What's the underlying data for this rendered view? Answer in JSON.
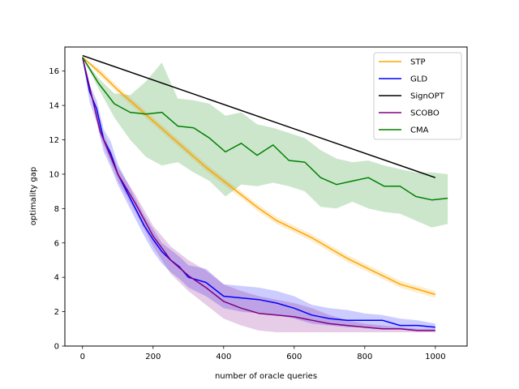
{
  "chart_data": {
    "type": "line",
    "title": "",
    "xlabel": "number of oracle queries",
    "ylabel": "optimality gap",
    "xlim": [
      -50,
      1090
    ],
    "ylim": [
      0,
      17.4
    ],
    "xticks": [
      0,
      200,
      400,
      600,
      800,
      1000
    ],
    "yticks": [
      0,
      2,
      4,
      6,
      8,
      10,
      12,
      14,
      16
    ],
    "legend_position": "top-right",
    "series": [
      {
        "name": "STP",
        "color": "#ffa500",
        "x": [
          0,
          50,
          100,
          150,
          200,
          250,
          300,
          350,
          400,
          450,
          500,
          550,
          600,
          650,
          700,
          750,
          800,
          850,
          900,
          950,
          1000
        ],
        "y": [
          16.8,
          15.9,
          14.9,
          14.0,
          13.1,
          12.2,
          11.3,
          10.4,
          9.6,
          8.8,
          8.0,
          7.3,
          6.8,
          6.3,
          5.7,
          5.1,
          4.6,
          4.1,
          3.6,
          3.3,
          3.0
        ],
        "band_lower": [
          16.8,
          15.7,
          14.7,
          13.8,
          12.9,
          12.0,
          11.1,
          10.2,
          9.4,
          8.6,
          7.8,
          7.1,
          6.6,
          6.1,
          5.5,
          4.9,
          4.4,
          3.9,
          3.4,
          3.1,
          2.8
        ],
        "band_upper": [
          16.8,
          16.1,
          15.1,
          14.2,
          13.3,
          12.4,
          11.5,
          10.6,
          9.8,
          9.0,
          8.2,
          7.5,
          7.0,
          6.5,
          5.9,
          5.3,
          4.8,
          4.3,
          3.8,
          3.5,
          3.2
        ]
      },
      {
        "name": "GLD",
        "color": "#0000ff",
        "x": [
          0,
          20,
          40,
          60,
          80,
          100,
          125,
          150,
          175,
          200,
          225,
          250,
          275,
          300,
          350,
          400,
          450,
          500,
          550,
          600,
          650,
          700,
          750,
          800,
          850,
          900,
          950,
          1000
        ],
        "y": [
          16.8,
          14.8,
          13.8,
          12.0,
          11.2,
          10.0,
          9.0,
          8.0,
          7.0,
          6.2,
          5.5,
          5.0,
          4.6,
          4.0,
          3.7,
          2.9,
          2.8,
          2.7,
          2.5,
          2.2,
          1.8,
          1.6,
          1.5,
          1.5,
          1.5,
          1.2,
          1.2,
          1.1
        ],
        "band_lower": [
          16.8,
          14.2,
          13.0,
          11.3,
          10.4,
          9.4,
          8.4,
          7.4,
          6.4,
          5.5,
          4.8,
          4.3,
          3.9,
          3.4,
          2.9,
          2.2,
          2.0,
          1.9,
          1.8,
          1.6,
          1.3,
          1.2,
          1.1,
          1.1,
          1.0,
          1.0,
          0.9,
          0.9
        ],
        "band_upper": [
          16.8,
          15.2,
          14.3,
          12.6,
          11.9,
          10.6,
          9.6,
          8.6,
          7.6,
          6.8,
          6.0,
          5.6,
          5.2,
          4.7,
          4.5,
          3.6,
          3.5,
          3.4,
          3.2,
          2.9,
          2.4,
          2.2,
          2.1,
          1.9,
          1.8,
          1.6,
          1.5,
          1.3
        ]
      },
      {
        "name": "SignOPT",
        "color": "#000000",
        "x": [
          0,
          1000
        ],
        "y": [
          16.9,
          9.8
        ]
      },
      {
        "name": "SCOBO",
        "color": "#800080",
        "x": [
          0,
          50,
          100,
          150,
          200,
          250,
          300,
          350,
          400,
          450,
          500,
          550,
          600,
          650,
          700,
          750,
          800,
          850,
          900,
          950,
          1000
        ],
        "y": [
          16.8,
          12.5,
          10.0,
          8.3,
          6.4,
          5.0,
          4.1,
          3.4,
          2.6,
          2.2,
          1.9,
          1.8,
          1.7,
          1.5,
          1.3,
          1.2,
          1.1,
          1.0,
          1.0,
          0.9,
          0.9
        ],
        "band_lower": [
          16.8,
          12.2,
          9.6,
          7.8,
          5.8,
          4.2,
          3.2,
          2.4,
          1.6,
          1.2,
          0.9,
          0.8,
          0.8,
          0.8,
          0.8,
          0.8,
          0.8,
          0.8,
          0.8,
          0.8,
          0.8
        ],
        "band_upper": [
          16.8,
          12.8,
          10.4,
          8.8,
          7.0,
          5.8,
          5.0,
          4.4,
          3.6,
          3.2,
          2.9,
          2.7,
          2.5,
          2.2,
          1.8,
          1.5,
          1.3,
          1.2,
          1.1,
          1.0,
          1.0
        ]
      },
      {
        "name": "CMA",
        "color": "#008000",
        "x": [
          0,
          45,
          90,
          135,
          180,
          225,
          270,
          315,
          360,
          405,
          450,
          495,
          540,
          585,
          630,
          675,
          720,
          765,
          810,
          855,
          900,
          945,
          990,
          1035
        ],
        "y": [
          16.8,
          15.3,
          14.1,
          13.6,
          13.5,
          13.6,
          12.8,
          12.7,
          12.1,
          11.3,
          11.8,
          11.1,
          11.7,
          10.8,
          10.7,
          9.8,
          9.4,
          9.6,
          9.8,
          9.3,
          9.3,
          8.7,
          8.5,
          8.6
        ],
        "band_lower": [
          16.8,
          15.0,
          13.3,
          12.0,
          11.0,
          10.5,
          10.7,
          10.1,
          9.6,
          8.7,
          9.4,
          9.3,
          9.5,
          9.3,
          9.0,
          8.1,
          8.0,
          8.4,
          8.0,
          7.8,
          7.7,
          7.3,
          6.9,
          7.1
        ],
        "band_upper": [
          16.8,
          15.6,
          14.7,
          14.6,
          15.4,
          16.5,
          14.4,
          14.3,
          14.1,
          13.4,
          13.6,
          12.9,
          12.7,
          12.4,
          12.1,
          11.4,
          10.9,
          10.7,
          10.8,
          10.5,
          10.3,
          10.1,
          10.1,
          10.0
        ]
      }
    ]
  }
}
